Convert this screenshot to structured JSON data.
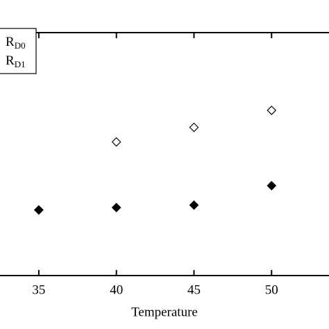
{
  "chart_data": {
    "type": "scatter",
    "x_label": "Temperature",
    "x": [
      35,
      40,
      45,
      50
    ],
    "series": [
      {
        "name": "RD0",
        "color": "#000000",
        "marker": "open-diamond",
        "values": [
          0.27,
          0.55,
          0.61,
          0.68
        ]
      },
      {
        "name": "RD1",
        "color": "#000000",
        "marker": "filled-diamond",
        "values": [
          0.27,
          0.28,
          0.29,
          0.37
        ]
      }
    ],
    "xlim": [
      32.5,
      53.7
    ],
    "xticks": [
      35,
      40,
      45,
      50
    ],
    "ylim": [
      0,
      1
    ]
  }
}
